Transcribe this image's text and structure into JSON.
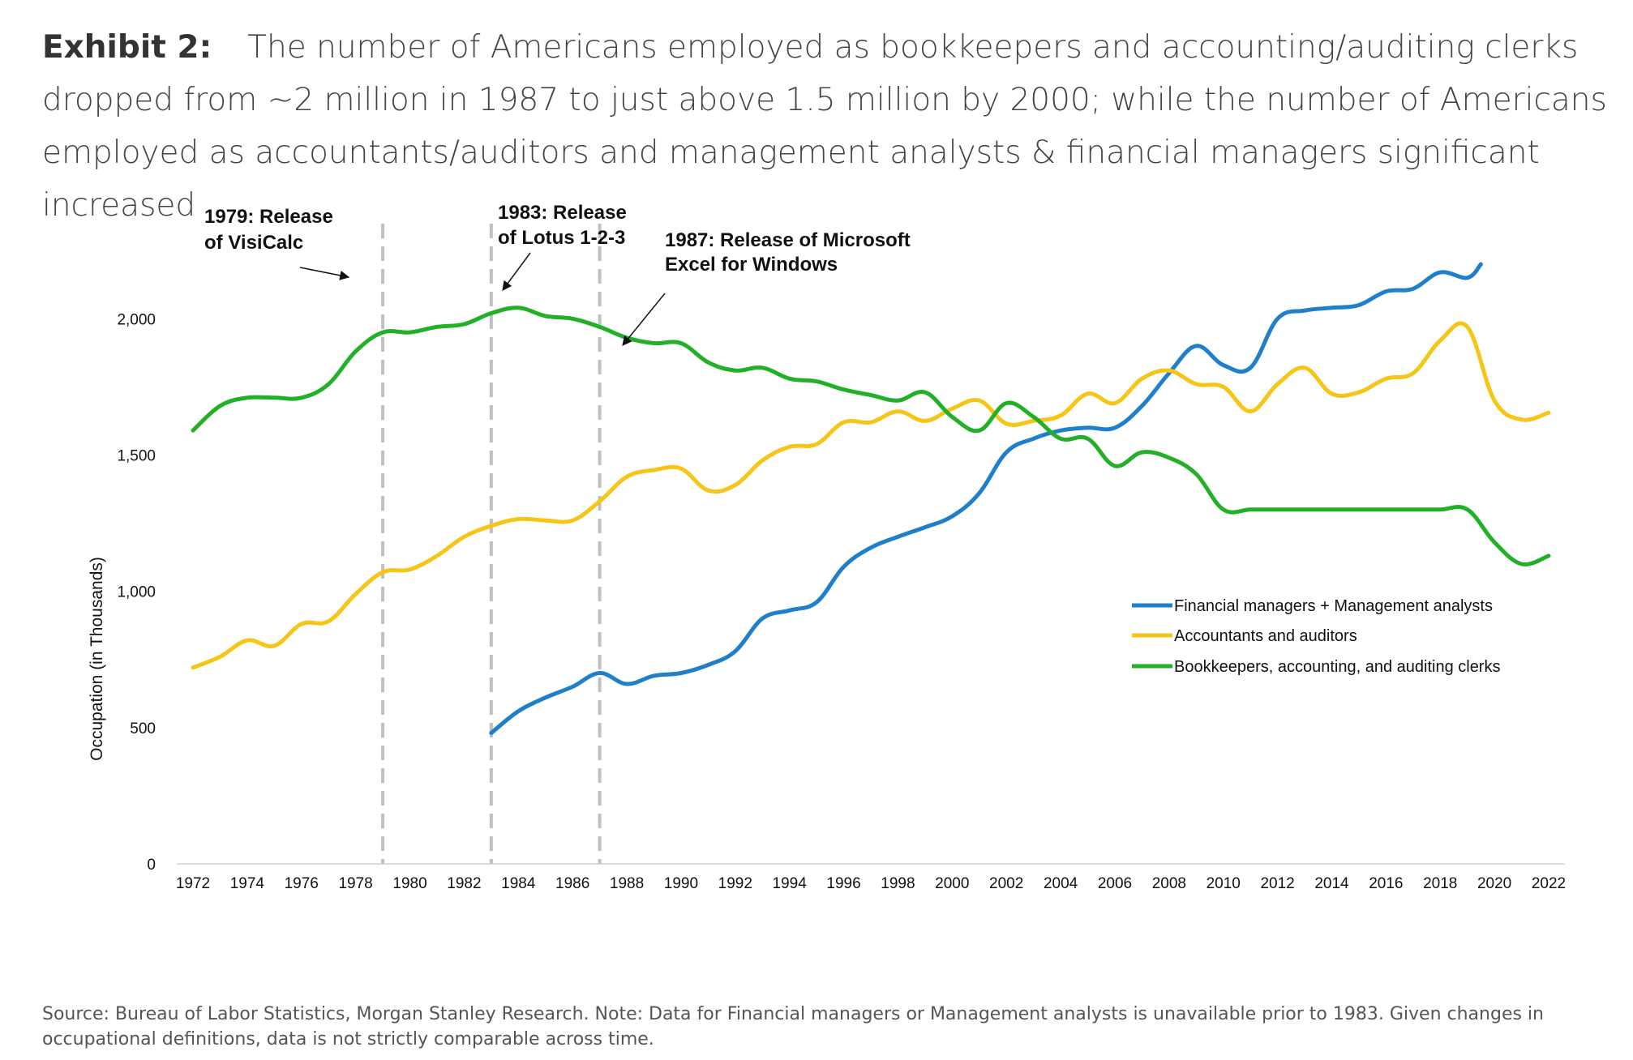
{
  "header": {
    "exhibit": "Exhibit 2:",
    "title": "The number of Americans employed as bookkeepers and accounting/auditing clerks dropped from ~2 million in 1987 to just above 1.5 million by 2000; while the number of Americans employed as accountants/auditors and management analysts & financial managers significant increased"
  },
  "footer": {
    "source": "Source: Bureau of Labor Statistics, Morgan Stanley Research. Note: Data for Financial managers or Management analysts is unavailable prior to 1983. Given changes in occupational definitions, data is not strictly comparable across time."
  },
  "chart_data": {
    "type": "line",
    "title": "",
    "xlabel": "",
    "ylabel": "Occupation (in Thousands)",
    "xlim": [
      1972,
      2022
    ],
    "ylim": [
      0,
      2200
    ],
    "x_ticks": [
      "1972",
      "1974",
      "1976",
      "1978",
      "1980",
      "1982",
      "1984",
      "1986",
      "1988",
      "1990",
      "1992",
      "1994",
      "1996",
      "1998",
      "2000",
      "2002",
      "2004",
      "2006",
      "2008",
      "2010",
      "2012",
      "2014",
      "2016",
      "2018",
      "2020",
      "2022"
    ],
    "y_ticks": [
      "0",
      "500",
      "1,000",
      "1,500",
      "2,000"
    ],
    "grid": false,
    "legend_position": "right",
    "series": [
      {
        "name": "Financial managers + Management analysts",
        "color": "#1f7fc9",
        "x": [
          1983,
          1984,
          1985,
          1986,
          1987,
          1988,
          1989,
          1990,
          1991,
          1992,
          1993,
          1994,
          1995,
          1996,
          1997,
          1998,
          1999,
          2000,
          2001,
          2002,
          2003,
          2004,
          2005,
          2006,
          2007,
          2008,
          2009,
          2010,
          2011,
          2012,
          2013,
          2014,
          2015,
          2016,
          2017,
          2018,
          2019,
          2019.5
        ],
        "y": [
          480,
          560,
          610,
          650,
          700,
          660,
          690,
          700,
          730,
          780,
          900,
          930,
          960,
          1090,
          1160,
          1200,
          1235,
          1275,
          1360,
          1510,
          1560,
          1590,
          1600,
          1600,
          1680,
          1800,
          1900,
          1830,
          1820,
          2000,
          2030,
          2040,
          2050,
          2100,
          2110,
          2170,
          2150,
          2200
        ]
      },
      {
        "name": "Accountants and auditors",
        "color": "#f5c518",
        "x": [
          1972,
          1973,
          1974,
          1975,
          1976,
          1977,
          1978,
          1979,
          1980,
          1981,
          1982,
          1983,
          1984,
          1985,
          1986,
          1987,
          1988,
          1989,
          1990,
          1991,
          1992,
          1993,
          1994,
          1995,
          1996,
          1997,
          1998,
          1999,
          2000,
          2001,
          2002,
          2003,
          2004,
          2005,
          2006,
          2007,
          2008,
          2009,
          2010,
          2011,
          2012,
          2013,
          2014,
          2015,
          2016,
          2017,
          2018,
          2019,
          2020,
          2021,
          2022
        ],
        "y": [
          720,
          760,
          820,
          800,
          880,
          890,
          990,
          1070,
          1080,
          1130,
          1200,
          1240,
          1265,
          1260,
          1260,
          1330,
          1420,
          1445,
          1450,
          1370,
          1390,
          1480,
          1530,
          1540,
          1620,
          1620,
          1660,
          1625,
          1670,
          1700,
          1615,
          1625,
          1645,
          1725,
          1690,
          1780,
          1810,
          1760,
          1750,
          1660,
          1760,
          1820,
          1725,
          1730,
          1780,
          1800,
          1920,
          1970,
          1700,
          1630,
          1655
        ]
      },
      {
        "name": "Bookkeepers, accounting, and auditing clerks",
        "color": "#22b028",
        "x": [
          1972,
          1973,
          1974,
          1975,
          1976,
          1977,
          1978,
          1979,
          1980,
          1981,
          1982,
          1983,
          1984,
          1985,
          1986,
          1987,
          1988,
          1989,
          1990,
          1991,
          1992,
          1993,
          1994,
          1995,
          1996,
          1997,
          1998,
          1999,
          2000,
          2001,
          2002,
          2003,
          2004,
          2005,
          2006,
          2007,
          2008,
          2009,
          2010,
          2011,
          2012,
          2013,
          2014,
          2015,
          2016,
          2017,
          2018,
          2019,
          2020,
          2021,
          2022
        ],
        "y": [
          1590,
          1680,
          1710,
          1710,
          1710,
          1760,
          1880,
          1950,
          1950,
          1970,
          1980,
          2020,
          2040,
          2010,
          2000,
          1970,
          1930,
          1910,
          1910,
          1840,
          1810,
          1820,
          1780,
          1770,
          1740,
          1720,
          1700,
          1730,
          1640,
          1590,
          1690,
          1640,
          1560,
          1560,
          1460,
          1510,
          1490,
          1430,
          1300,
          1300,
          1300,
          1300,
          1300,
          1300,
          1300,
          1300,
          1300,
          1300,
          1180,
          1100,
          1130
        ]
      }
    ],
    "annotations": [
      {
        "year": 1979,
        "line1": "1979: Release",
        "line2": "of VisiCalc"
      },
      {
        "year": 1983,
        "line1": "1983: Release",
        "line2": "of Lotus 1-2-3"
      },
      {
        "year": 1987,
        "line1": "1987: Release of Microsoft",
        "line2": "Excel for Windows"
      }
    ]
  }
}
